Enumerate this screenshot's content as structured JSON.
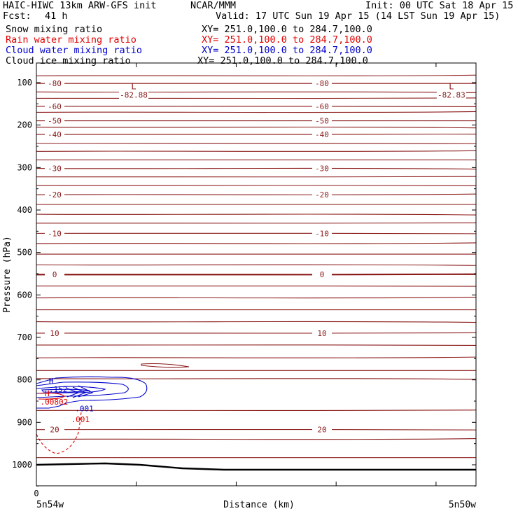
{
  "header": {
    "title": "HAIC-HIWC 13km ARW-GFS init",
    "org": "NCAR/MMM",
    "init": "Init: 00 UTC Sat 18 Apr 15",
    "fcst_label": "Fcst:",
    "fcst_value": "41 h",
    "valid": "Valid: 17 UTC Sun 19 Apr 15 (14 LST Sun 19 Apr 15)"
  },
  "fields": [
    {
      "name": "Snow mixing ratio",
      "xy": "XY= 251.0,100.0 to 284.7,100.0",
      "color": "#000000"
    },
    {
      "name": "Rain water mixing ratio",
      "xy": "XY= 251.0,100.0 to 284.7,100.0",
      "color": "#e00000"
    },
    {
      "name": "Cloud water mixing ratio",
      "xy": "XY= 251.0,100.0 to 284.7,100.0",
      "color": "#0000cc"
    },
    {
      "name": "Cloud ice mixing ratio",
      "xy": "XY= 251.0,100.0 to 284.7,100.0",
      "color": "#000000"
    }
  ],
  "colors": {
    "temperature": "#8b1a1a",
    "terrain": "#000000",
    "rain": "#e00000",
    "cloud_water": "#0000cc"
  },
  "chart_data": {
    "type": "line",
    "xlabel": "Distance (km)",
    "ylabel": "Pressure (hPa)",
    "x_tick_labels": [
      "0"
    ],
    "endpoint_labels": {
      "left": "5n54w",
      "right": "5n50w"
    },
    "ylim": [
      1050,
      70
    ],
    "y_ticks": [
      100,
      200,
      300,
      400,
      500,
      600,
      700,
      800,
      900,
      1000
    ],
    "xlim": [
      0,
      440
    ],
    "x_tick_positions": [
      0,
      100,
      200,
      300,
      400
    ],
    "isotherms": [
      {
        "pressure": 84,
        "label": ""
      },
      {
        "pressure": 102,
        "label": "-80"
      },
      {
        "pressure": 122,
        "label": ""
      },
      {
        "pressure": 137,
        "label": ""
      },
      {
        "pressure": 156,
        "label": "-60"
      },
      {
        "pressure": 170,
        "label": ""
      },
      {
        "pressure": 190,
        "label": "-50"
      },
      {
        "pressure": 205,
        "label": ""
      },
      {
        "pressure": 222,
        "label": "-40"
      },
      {
        "pressure": 243,
        "label": ""
      },
      {
        "pressure": 262,
        "label": ""
      },
      {
        "pressure": 282,
        "label": ""
      },
      {
        "pressure": 302,
        "label": "-30"
      },
      {
        "pressure": 322,
        "label": ""
      },
      {
        "pressure": 342,
        "label": ""
      },
      {
        "pressure": 364,
        "label": "-20"
      },
      {
        "pressure": 387,
        "label": ""
      },
      {
        "pressure": 410,
        "label": ""
      },
      {
        "pressure": 431,
        "label": ""
      },
      {
        "pressure": 455,
        "label": "-10"
      },
      {
        "pressure": 479,
        "label": ""
      },
      {
        "pressure": 504,
        "label": ""
      },
      {
        "pressure": 529,
        "label": ""
      },
      {
        "pressure": 552,
        "label": "0",
        "bold": true
      },
      {
        "pressure": 579,
        "label": ""
      },
      {
        "pressure": 607,
        "label": ""
      },
      {
        "pressure": 635,
        "label": ""
      },
      {
        "pressure": 663,
        "label": ""
      },
      {
        "pressure": 690,
        "label": "10"
      },
      {
        "pressure": 718,
        "label": ""
      },
      {
        "pressure": 748,
        "label": ""
      },
      {
        "pressure": 778,
        "label": ""
      },
      {
        "pressure": 797,
        "label": ""
      },
      {
        "pressure": 872,
        "label": ""
      },
      {
        "pressure": 917,
        "label": "20"
      },
      {
        "pressure": 940,
        "label": ""
      },
      {
        "pressure": 983,
        "label": ""
      }
    ],
    "annotations": {
      "lows": [
        {
          "x": 82,
          "pressure": 88,
          "symbol": "L",
          "value": "-82.88"
        },
        {
          "x": 400,
          "pressure": 88,
          "symbol": "L",
          "value": "-82.83"
        }
      ],
      "highs": [
        {
          "x": 12,
          "pressure": 812,
          "symbol": "H",
          "value": ".152",
          "color": "#0000cc"
        },
        {
          "x": 8,
          "pressure": 842,
          "symbol": "H",
          "value": ".00802",
          "color": "#e00000"
        }
      ],
      "contour_labels": [
        {
          "x": 48,
          "pressure": 867,
          "text": ".001",
          "color": "#0000cc"
        },
        {
          "x": 44,
          "pressure": 893,
          "text": ".001",
          "color": "#e00000"
        }
      ]
    }
  }
}
